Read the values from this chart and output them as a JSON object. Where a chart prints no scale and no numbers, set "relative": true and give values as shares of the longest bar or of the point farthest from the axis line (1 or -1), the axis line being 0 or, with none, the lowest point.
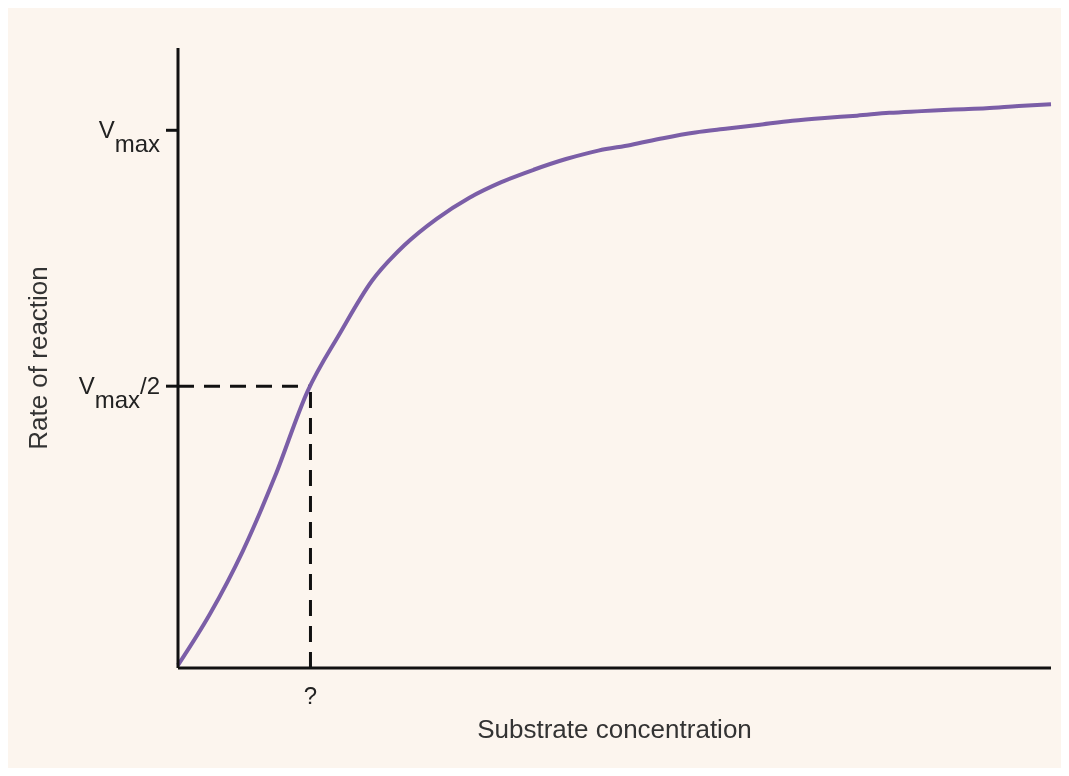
{
  "chart_data": {
    "type": "line",
    "xlabel": "Substrate concentration",
    "ylabel": "Rate of reaction",
    "relative": true,
    "categories": [
      null,
      null,
      null,
      null,
      null,
      null,
      null,
      null,
      null,
      null,
      null,
      null,
      null,
      null,
      null,
      null,
      null,
      null,
      null,
      null,
      null,
      null,
      null,
      null,
      null,
      null,
      null,
      null
    ],
    "series": [
      {
        "color": "#7b5ea7",
        "values": [
          0.005,
          0.097,
          0.207,
          0.34,
          0.49,
          0.593,
          0.687,
          0.75,
          0.797,
          0.834,
          0.862,
          0.884,
          0.903,
          0.918,
          0.928,
          0.94,
          0.95,
          0.957,
          0.964,
          0.971,
          0.976,
          0.98,
          0.985,
          0.988,
          0.991,
          0.993,
          0.997,
          1.0
        ]
      }
    ],
    "annotations": [
      "?"
    ],
    "ref_lines": [
      {
        "axis": "y",
        "value": 0.954,
        "label": "V$_{max}$",
        "color": "#111111"
      },
      {
        "axis": "y",
        "value": 0.5,
        "label": "V$_{max}$/2",
        "line_style": "dashed",
        "color": "#111111"
      }
    ],
    "marker": "none",
    "line_style": "solid"
  }
}
